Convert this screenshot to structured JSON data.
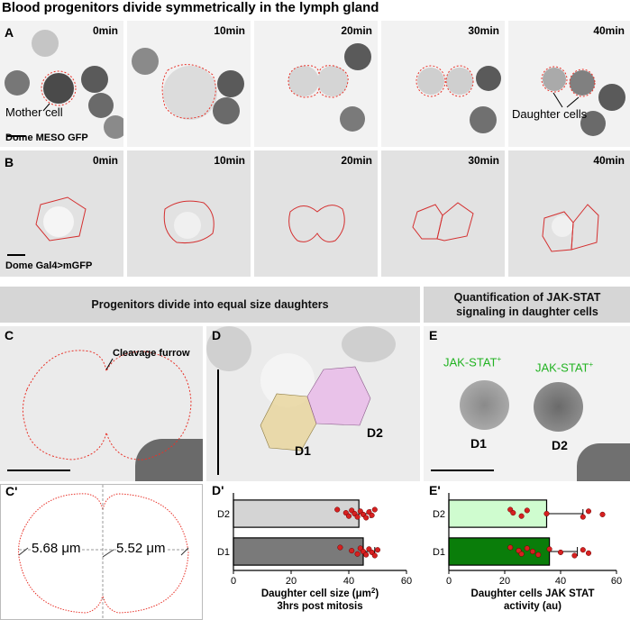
{
  "title": "Blood progenitors divide symmetrically in the lymph gland",
  "rowA": {
    "label": "A",
    "times": [
      "0min",
      "10min",
      "20min",
      "30min",
      "40min"
    ],
    "mother_label": "Mother cell",
    "daughter_label": "Daughter cells",
    "marker": "Dome MESO GFP"
  },
  "rowB": {
    "label": "B",
    "times": [
      "0min",
      "10min",
      "20min",
      "30min",
      "40min"
    ],
    "marker": "Dome Gal4>mGFP"
  },
  "band1": "Progenitors divide into equal size daughters",
  "band2": "Quantification of JAK-STAT signaling in daughter cells",
  "panelC": {
    "label": "C",
    "annotation": "Cleavage furrow"
  },
  "panelCp": {
    "label": "C'",
    "left": "5.68 μm",
    "right": "5.52 μm"
  },
  "panelD": {
    "label": "D",
    "d1": "D1",
    "d2": "D2"
  },
  "panelE": {
    "label": "E",
    "tag1": "JAK-STAT",
    "tag2": "JAK-STAT",
    "d1": "D1",
    "d2": "D2",
    "sup": "+"
  },
  "panelDp": {
    "label": "D'"
  },
  "panelEp": {
    "label": "E'"
  },
  "colors": {
    "dashed": "#e8332a",
    "d2bar": "#d4d4d4",
    "d1bar": "#7a7a7a",
    "e_d2bar": "#cffccf",
    "e_d1bar": "#0a7d0a",
    "dot": "#d62020",
    "green_text": "#22b322",
    "d1_overlay": "#e8d59a",
    "d2_overlay": "#e8b8e8"
  },
  "chart_data": [
    {
      "type": "bar",
      "categories": [
        "D2",
        "D1"
      ],
      "values": [
        43.5,
        45
      ],
      "errors": [
        4,
        4
      ],
      "points": [
        [
          36,
          39,
          40,
          41,
          42,
          43,
          44,
          45,
          46,
          47,
          48,
          49
        ],
        [
          37,
          41,
          43,
          44,
          45,
          46,
          47,
          48,
          49,
          50
        ]
      ],
      "xlabel": "Daughter cell size (μm",
      "xlabel_sup": "2",
      "xlabel_end": ")",
      "xlabel2": "3hrs post mitosis",
      "xticks": [
        "0",
        "20",
        "40",
        "60"
      ],
      "xlim": [
        0,
        60
      ]
    },
    {
      "type": "bar",
      "categories": [
        "D2",
        "D1"
      ],
      "values": [
        35,
        36
      ],
      "errors": [
        13,
        10
      ],
      "points": [
        [
          22,
          23,
          26,
          28,
          35,
          48,
          50,
          55
        ],
        [
          22,
          25,
          26,
          28,
          30,
          32,
          36,
          40,
          45,
          48,
          50
        ]
      ],
      "xlabel": "Daughter cells JAK STAT",
      "xlabel2": "activity (au)",
      "xticks": [
        "0",
        "20",
        "40",
        "60"
      ],
      "xlim": [
        0,
        60
      ]
    }
  ]
}
